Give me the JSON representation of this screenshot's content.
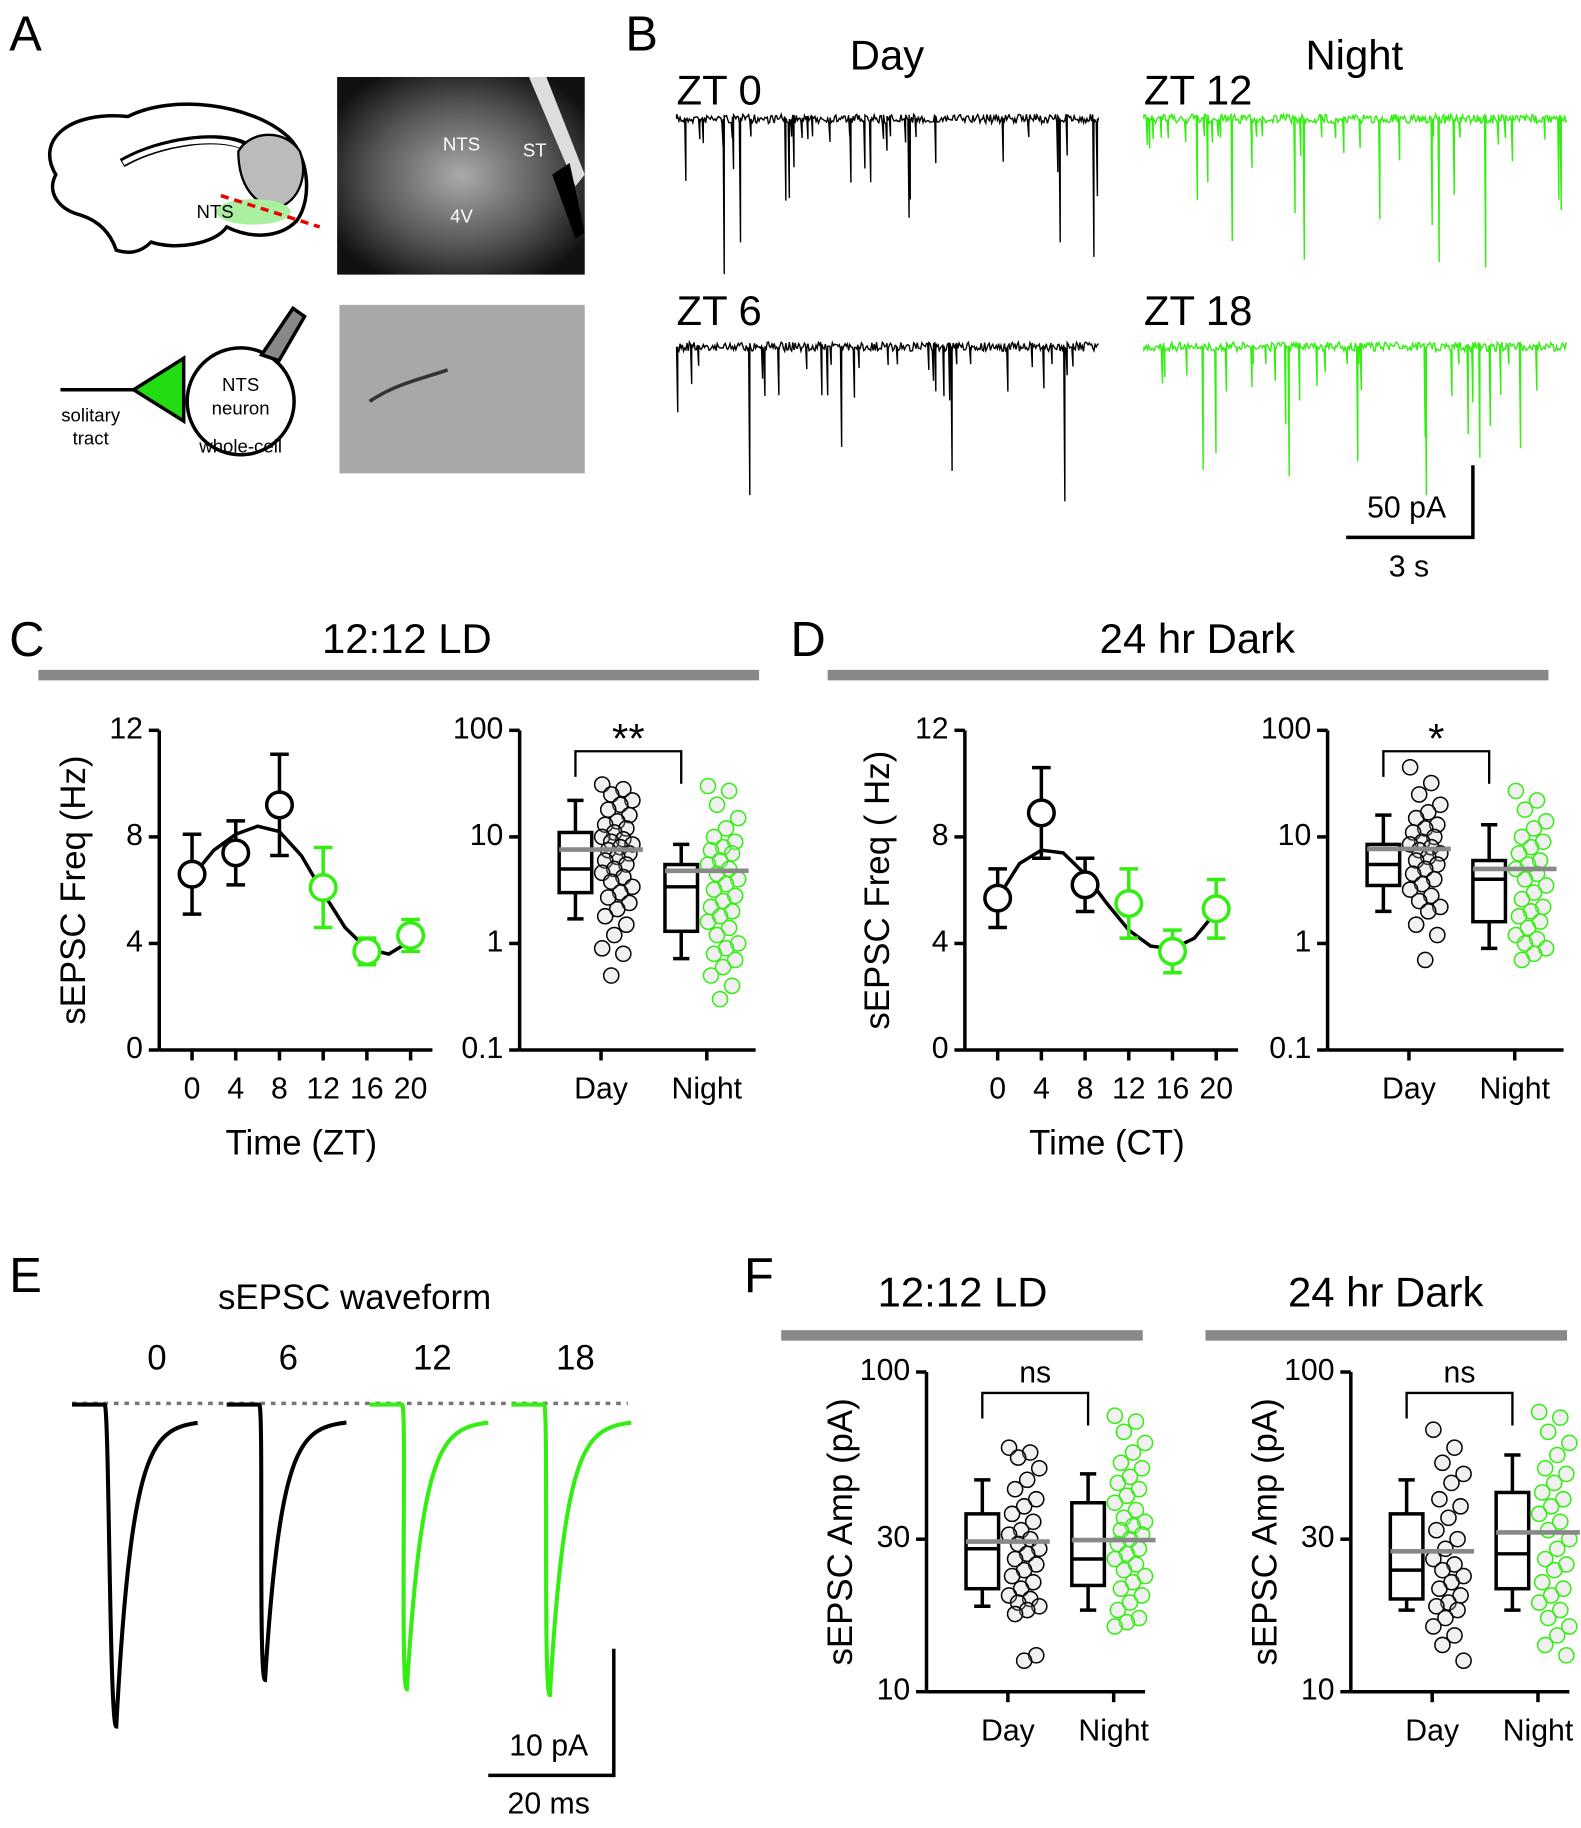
{
  "panel_a": {
    "label": "A",
    "brain_label": "NTS",
    "photo_labels": [
      "NTS",
      "ST",
      "4V"
    ],
    "neuron_label": [
      "NTS",
      "neuron"
    ],
    "tract_label": [
      "solitary",
      "tract"
    ],
    "recording_label": "whole-cell"
  },
  "panel_b": {
    "label": "B",
    "conditions": [
      "Day",
      "Night"
    ],
    "traces": [
      "ZT 0",
      "ZT 12",
      "ZT 6",
      "ZT 18"
    ],
    "trace_colors": [
      "#000000",
      "#33ee11",
      "#000000",
      "#33ee11"
    ],
    "scale_y": "50 pA",
    "scale_x": "3 s"
  },
  "panel_c": {
    "label": "C",
    "title": "12:12 LD"
  },
  "panel_d": {
    "label": "D",
    "title": "24 hr Dark"
  },
  "panel_e": {
    "label": "E",
    "title": "sEPSC waveform",
    "traces": [
      0,
      6,
      12,
      18
    ],
    "trace_colors": [
      "#000000",
      "#000000",
      "#33ee11",
      "#33ee11"
    ],
    "scale_y": "10 pA",
    "scale_x": "20 ms"
  },
  "panel_f": {
    "label": "F",
    "titles": [
      "12:12 LD",
      "24 hr Dark"
    ]
  },
  "chart_data": [
    {
      "type": "line",
      "x": [
        0,
        4,
        8,
        12,
        16,
        20
      ],
      "xlim": [
        -3,
        22
      ],
      "xticks": [
        0,
        4,
        8,
        12,
        16,
        20
      ],
      "ylim": [
        0,
        12
      ],
      "yticks": [
        0,
        4,
        8,
        12
      ],
      "xlabel": "Time (ZT)",
      "ylabel": "sEPSC Freq (Hz)",
      "values": [
        6.6,
        7.4,
        9.2,
        6.1,
        3.7,
        4.3
      ],
      "errors": [
        1.5,
        1.2,
        1.9,
        1.5,
        0.5,
        0.6
      ],
      "point_colors": [
        "#000000",
        "#000000",
        "#000000",
        "#33ee11",
        "#33ee11",
        "#33ee11"
      ],
      "fit": {
        "x": [
          0,
          2,
          4,
          6,
          8,
          10,
          12,
          14,
          16,
          18,
          20
        ],
        "values": [
          6.5,
          7.5,
          8.1,
          8.4,
          8.2,
          7.3,
          5.9,
          4.6,
          3.8,
          3.6,
          4.1
        ],
        "color": "#000000"
      }
    },
    {
      "type": "box",
      "categories": [
        "Day",
        "Night"
      ],
      "log_scale": true,
      "ylim": [
        0.1,
        100
      ],
      "yticks": [
        0.1,
        1,
        10,
        100
      ],
      "mean_color": "#888888",
      "annotation": "**",
      "groups": [
        {
          "color": "#000000",
          "whisker_low": 1.7,
          "q1": 3.0,
          "median": 5.0,
          "q3": 11,
          "whisker_high": 22,
          "mean": 7.6,
          "points": [
            31,
            28,
            25,
            22,
            20,
            18,
            16,
            14,
            13,
            12,
            11,
            10,
            9.5,
            9,
            8.5,
            8,
            7.5,
            7,
            6.5,
            6,
            5.5,
            5,
            4.6,
            4.2,
            3.8,
            3.4,
            3.0,
            2.7,
            2.4,
            2.1,
            1.8,
            1.5,
            1.2,
            0.9,
            0.8,
            0.5
          ]
        },
        {
          "color": "#33ee11",
          "whisker_low": 0.72,
          "q1": 1.3,
          "median": 3.4,
          "q3": 5.5,
          "whisker_high": 8.5,
          "mean": 4.8,
          "points": [
            30,
            27,
            20,
            15,
            12,
            10,
            9,
            8,
            7.5,
            7,
            6,
            5.5,
            5,
            4.5,
            4,
            3.6,
            3.2,
            2.8,
            2.5,
            2.2,
            2,
            1.8,
            1.6,
            1.4,
            1.2,
            1,
            0.9,
            0.8,
            0.7,
            0.6,
            0.5,
            0.4,
            0.3
          ]
        }
      ]
    },
    {
      "type": "line",
      "x": [
        0,
        4,
        8,
        12,
        16,
        20
      ],
      "xlim": [
        -3,
        22
      ],
      "xticks": [
        0,
        4,
        8,
        12,
        16,
        20
      ],
      "ylim": [
        0,
        12
      ],
      "yticks": [
        0,
        4,
        8,
        12
      ],
      "xlabel": "Time (CT)",
      "ylabel": "sEPSC Freq ( Hz)",
      "values": [
        5.7,
        8.9,
        6.2,
        5.5,
        3.7,
        5.3
      ],
      "errors": [
        1.1,
        1.7,
        1.0,
        1.3,
        0.8,
        1.1
      ],
      "point_colors": [
        "#000000",
        "#000000",
        "#000000",
        "#33ee11",
        "#33ee11",
        "#33ee11"
      ],
      "fit": {
        "x": [
          0,
          2,
          4,
          6,
          8,
          10,
          12,
          14,
          16,
          18,
          20
        ],
        "values": [
          5.7,
          7.0,
          7.5,
          7.4,
          6.6,
          5.5,
          4.5,
          3.9,
          3.8,
          4.2,
          5.2
        ],
        "color": "#000000"
      }
    },
    {
      "type": "box",
      "categories": [
        "Day",
        "Night"
      ],
      "log_scale": true,
      "ylim": [
        0.1,
        100
      ],
      "yticks": [
        0.1,
        1,
        10,
        100
      ],
      "mean_color": "#888888",
      "annotation": "*",
      "groups": [
        {
          "color": "#000000",
          "whisker_low": 2.0,
          "q1": 3.5,
          "median": 5.5,
          "q3": 8.5,
          "whisker_high": 16,
          "mean": 7.7,
          "points": [
            45,
            32,
            25,
            20,
            17,
            15,
            13,
            12,
            11,
            10,
            9,
            8.5,
            8,
            7.5,
            7,
            6.5,
            6,
            5.5,
            5,
            4.5,
            4,
            3.6,
            3.2,
            2.8,
            2.5,
            2.2,
            2,
            1.5,
            1.2,
            0.7
          ]
        },
        {
          "color": "#33ee11",
          "whisker_low": 0.9,
          "q1": 1.6,
          "median": 4.0,
          "q3": 6.0,
          "whisker_high": 13,
          "mean": 5.0,
          "points": [
            27,
            22,
            18,
            14,
            12,
            10,
            9,
            8,
            7,
            6,
            5.5,
            5,
            4.5,
            4,
            3.5,
            3,
            2.6,
            2.2,
            2,
            1.8,
            1.6,
            1.4,
            1.2,
            1.1,
            1,
            0.9,
            0.8,
            0.7
          ]
        }
      ]
    },
    {
      "type": "box",
      "categories": [
        "Day",
        "Night"
      ],
      "log_scale": true,
      "ylim": [
        10,
        100
      ],
      "yticks": [
        10,
        30,
        100
      ],
      "mean_color": "#888888",
      "annotation": "ns",
      "ylabel": "sEPSC Amp (pA)",
      "groups": [
        {
          "color": "#000000",
          "whisker_low": 18.5,
          "q1": 21,
          "median": 28,
          "q3": 36,
          "whisker_high": 46,
          "mean": 29.5,
          "points": [
            58,
            56,
            54,
            50,
            46,
            43,
            40,
            38,
            36,
            34,
            32,
            31,
            30,
            29,
            28,
            27,
            26,
            25,
            24,
            23,
            22,
            21,
            20,
            19.5,
            19,
            18.5,
            18,
            17.5,
            13,
            12.5
          ]
        },
        {
          "color": "#33ee11",
          "whisker_low": 18,
          "q1": 21.5,
          "median": 26,
          "q3": 39,
          "whisker_high": 48,
          "mean": 29.8,
          "points": [
            73,
            70,
            65,
            60,
            56,
            52,
            50,
            47,
            45,
            43,
            41,
            39,
            37,
            35,
            34,
            33,
            32,
            31,
            30,
            29,
            28,
            27,
            26,
            25,
            24,
            23,
            22,
            21,
            20,
            19,
            18,
            17,
            16.5,
            16
          ]
        }
      ]
    },
    {
      "type": "box",
      "categories": [
        "Day",
        "Night"
      ],
      "log_scale": true,
      "ylim": [
        10,
        100
      ],
      "yticks": [
        10,
        30,
        100
      ],
      "mean_color": "#888888",
      "annotation": "ns",
      "ylabel": "sEPSC Amp (pA)",
      "groups": [
        {
          "color": "#000000",
          "whisker_low": 18,
          "q1": 19.5,
          "median": 24,
          "q3": 36,
          "whisker_high": 46,
          "mean": 27.5,
          "points": [
            66,
            58,
            52,
            48,
            45,
            40,
            38,
            35,
            32,
            30,
            28,
            26,
            25,
            24,
            23,
            22,
            21,
            20,
            19,
            18.5,
            18,
            17,
            16,
            15,
            14,
            12.5
          ]
        },
        {
          "color": "#33ee11",
          "whisker_low": 18,
          "q1": 21,
          "median": 27,
          "q3": 42,
          "whisker_high": 55,
          "mean": 31.5,
          "points": [
            75,
            72,
            65,
            60,
            55,
            50,
            48,
            45,
            42,
            40,
            38,
            36,
            34,
            32,
            30,
            28,
            26,
            25,
            24,
            22,
            21,
            20,
            19,
            18,
            17,
            16,
            15,
            14,
            13
          ]
        }
      ]
    }
  ]
}
